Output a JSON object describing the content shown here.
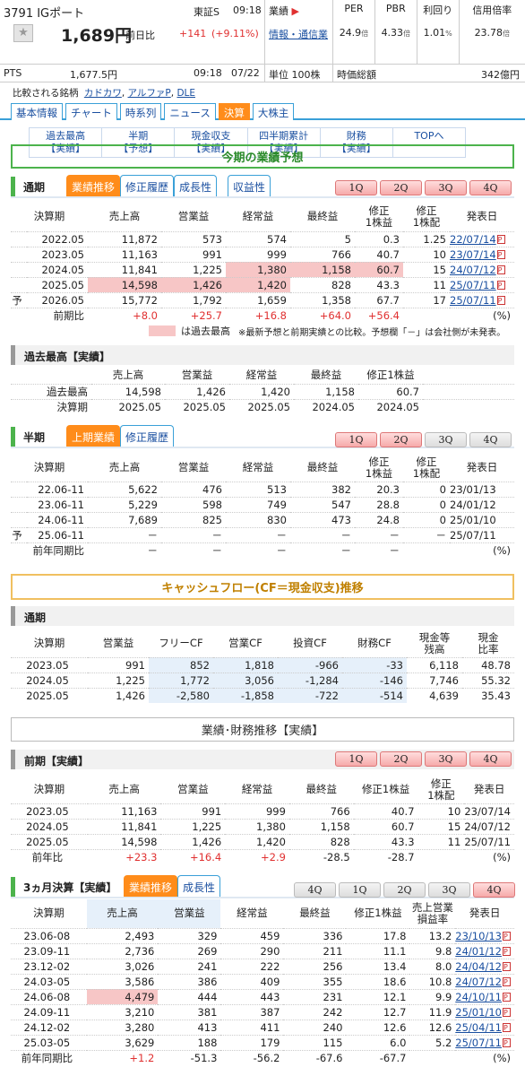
{
  "stock": {
    "code_name": "3791 IGポート",
    "price": "1,689円",
    "change_label": "前日比",
    "change": "+141",
    "change_pct": "(+9.11%)",
    "market": "東証S",
    "time": "09:18",
    "pts_label": "PTS",
    "pts_price": "1,677.5円",
    "pts_time": "09:18",
    "pts_date": "07/22",
    "compare_label": "比較される銘柄",
    "compare": [
      "カドカワ",
      "アルファP",
      "DLE"
    ]
  },
  "industry": {
    "label": "業績",
    "sector": "情報・通信業",
    "unit": "単位 100株"
  },
  "metrics": [
    {
      "label": "PER",
      "value": "24.9",
      "unit": "倍"
    },
    {
      "label": "PBR",
      "value": "4.33",
      "unit": "倍"
    },
    {
      "label": "利回り",
      "value": "1.01",
      "unit": "%"
    },
    {
      "label": "信用倍率",
      "value": "23.78",
      "unit": "倍"
    }
  ],
  "market_cap": {
    "label": "時価総額",
    "value": "342億円"
  },
  "tabs": [
    "基本情報",
    "チャート",
    "時系列",
    "ニュース",
    "決算",
    "大株主"
  ],
  "subnav": [
    [
      "過去最高",
      "【実績】"
    ],
    [
      "半期",
      "【予想】"
    ],
    [
      "現金収支",
      "【実績】"
    ],
    [
      "四半期累計",
      "【実績】"
    ],
    [
      "財務",
      "【実績】"
    ],
    [
      "TOPへ",
      ""
    ]
  ],
  "forecast_title": "今期の業績予想",
  "tsuki": {
    "title": "通期",
    "pills": [
      "業績推移",
      "修正履歴",
      "成長性",
      "収益性"
    ],
    "q": [
      "1Q",
      "2Q",
      "3Q",
      "4Q"
    ],
    "headers": [
      "決算期",
      "売上高",
      "営業益",
      "経常益",
      "最終益",
      "修正\n1株益",
      "修正\n1株配",
      "発表日"
    ],
    "rows": [
      [
        "",
        "2022.05",
        "11,872",
        "573",
        "574",
        "5",
        "0.3",
        "1.25",
        "22/07/14"
      ],
      [
        "",
        "2023.05",
        "11,163",
        "991",
        "999",
        "766",
        "40.7",
        "10",
        "23/07/14"
      ],
      [
        "",
        "2024.05",
        "11,841",
        "1,225",
        "1,380",
        "1,158",
        "60.7",
        "15",
        "24/07/12"
      ],
      [
        "",
        "2025.05",
        "14,598",
        "1,426",
        "1,420",
        "828",
        "43.3",
        "11",
        "25/07/11"
      ],
      [
        "予",
        "2026.05",
        "15,772",
        "1,792",
        "1,659",
        "1,358",
        "67.7",
        "17",
        "25/07/11"
      ]
    ],
    "yoy": [
      "前期比",
      "+8.0",
      "+25.7",
      "+16.8",
      "+64.0",
      "+56.4",
      "",
      "(%)"
    ],
    "legend": "は過去最高",
    "note": "※最新予想と前期実績との比較。予想欄「－」は会社側が未発表。"
  },
  "record": {
    "title": "過去最高【実績】",
    "headers": [
      "売上高",
      "営業益",
      "経常益",
      "最終益",
      "修正1株益"
    ],
    "rows": [
      [
        "過去最高",
        "14,598",
        "1,426",
        "1,420",
        "1,158",
        "60.7"
      ],
      [
        "決算期",
        "2025.05",
        "2025.05",
        "2025.05",
        "2024.05",
        "2024.05"
      ]
    ]
  },
  "half": {
    "title": "半期",
    "pills": [
      "上期業績",
      "修正履歴"
    ],
    "q": [
      "1Q",
      "2Q",
      "3Q",
      "4Q"
    ],
    "headers": [
      "決算期",
      "売上高",
      "営業益",
      "経常益",
      "最終益",
      "修正\n1株益",
      "修正\n1株配",
      "発表日"
    ],
    "rows": [
      [
        "",
        "22.06-11",
        "5,622",
        "476",
        "513",
        "382",
        "20.3",
        "0",
        "23/01/13"
      ],
      [
        "",
        "23.06-11",
        "5,229",
        "598",
        "749",
        "547",
        "28.8",
        "0",
        "24/01/12"
      ],
      [
        "",
        "24.06-11",
        "7,689",
        "825",
        "830",
        "473",
        "24.8",
        "0",
        "25/01/10"
      ],
      [
        "予",
        "25.06-11",
        "－",
        "－",
        "－",
        "－",
        "－",
        "－",
        "25/07/11"
      ]
    ],
    "yoy": [
      "前年同期比",
      "－",
      "－",
      "－",
      "－",
      "－",
      "",
      "(%)"
    ]
  },
  "cf": {
    "bar": "キャッシュフロー(CF＝現金収支)推移",
    "title": "通期",
    "headers": [
      "決算期",
      "営業益",
      "フリーCF",
      "営業CF",
      "投資CF",
      "財務CF",
      "現金等\n残高",
      "現金\n比率"
    ],
    "rows": [
      [
        "2023.05",
        "991",
        "852",
        "1,818",
        "-966",
        "-33",
        "6,118",
        "48.78"
      ],
      [
        "2024.05",
        "1,225",
        "1,772",
        "3,056",
        "-1,284",
        "-146",
        "7,746",
        "55.32"
      ],
      [
        "2025.05",
        "1,426",
        "-2,580",
        "-1,858",
        "-722",
        "-514",
        "4,639",
        "35.43"
      ]
    ]
  },
  "fin": {
    "bar": "業績･財務推移【実績】",
    "title": "前期【実績】",
    "q": [
      "1Q",
      "2Q",
      "3Q",
      "4Q"
    ],
    "headers": [
      "決算期",
      "売上高",
      "営業益",
      "経常益",
      "最終益",
      "修正1株益",
      "修正\n1株配",
      "発表日"
    ],
    "rows": [
      [
        "2023.05",
        "11,163",
        "991",
        "999",
        "766",
        "40.7",
        "10",
        "23/07/14"
      ],
      [
        "2024.05",
        "11,841",
        "1,225",
        "1,380",
        "1,158",
        "60.7",
        "15",
        "24/07/12"
      ],
      [
        "2025.05",
        "14,598",
        "1,426",
        "1,420",
        "828",
        "43.3",
        "11",
        "25/07/11"
      ]
    ],
    "yoy": [
      "前年比",
      "+23.3",
      "+16.4",
      "+2.9",
      "-28.5",
      "-28.7",
      "",
      "(%)"
    ]
  },
  "q3": {
    "title": "3ヵ月決算【実績】",
    "pills": [
      "業績推移",
      "成長性"
    ],
    "q": [
      "4Q",
      "1Q",
      "2Q",
      "3Q",
      "4Q"
    ],
    "headers": [
      "決算期",
      "売上高",
      "営業益",
      "経常益",
      "最終益",
      "修正1株益",
      "売上営業\n損益率",
      "発表日"
    ],
    "rows": [
      [
        "23.06-08",
        "2,493",
        "329",
        "459",
        "336",
        "17.8",
        "13.2",
        "23/10/13"
      ],
      [
        "23.09-11",
        "2,736",
        "269",
        "290",
        "211",
        "11.1",
        "9.8",
        "24/01/12"
      ],
      [
        "23.12-02",
        "3,026",
        "241",
        "222",
        "256",
        "13.4",
        "8.0",
        "24/04/12"
      ],
      [
        "24.03-05",
        "3,586",
        "386",
        "409",
        "355",
        "18.6",
        "10.8",
        "24/07/12"
      ],
      [
        "24.06-08",
        "4,479",
        "444",
        "443",
        "231",
        "12.1",
        "9.9",
        "24/10/11"
      ],
      [
        "24.09-11",
        "3,210",
        "381",
        "387",
        "242",
        "12.7",
        "11.9",
        "25/01/10"
      ],
      [
        "24.12-02",
        "3,280",
        "413",
        "411",
        "240",
        "12.6",
        "12.6",
        "25/04/11"
      ],
      [
        "25.03-05",
        "3,629",
        "188",
        "179",
        "115",
        "6.0",
        "5.2",
        "25/07/11"
      ]
    ],
    "yoy": [
      "前年同期比",
      "+1.2",
      "-51.3",
      "-56.2",
      "-67.6",
      "-67.7",
      "",
      "(%)"
    ]
  }
}
